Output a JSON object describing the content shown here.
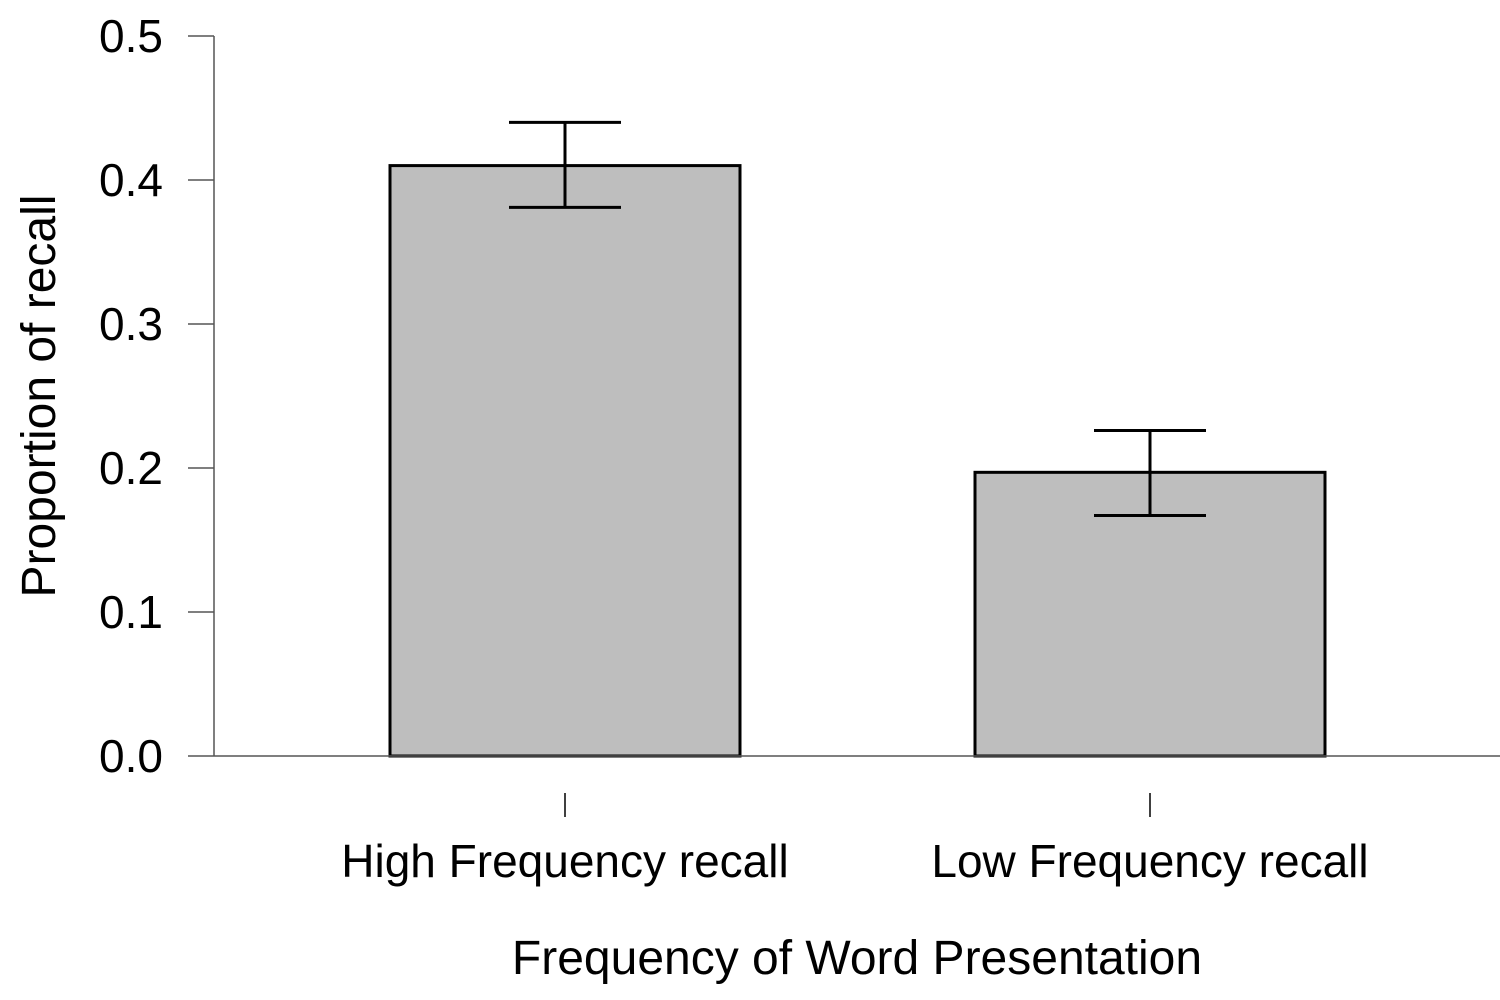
{
  "chart_data": {
    "type": "bar",
    "categories": [
      "High Frequency recall",
      "Low Frequency recall"
    ],
    "values": [
      0.41,
      0.197
    ],
    "error_low": [
      0.381,
      0.167
    ],
    "error_high": [
      0.44,
      0.226
    ],
    "title": "",
    "xlabel": "Frequency of Word Presentation",
    "ylabel": "Proportion of recall",
    "ylim": [
      0,
      0.5
    ],
    "yticks": [
      0.0,
      0.1,
      0.2,
      0.3,
      0.4,
      0.5
    ],
    "ytick_labels": [
      "0.0",
      "0.1",
      "0.2",
      "0.3",
      "0.4",
      "0.5"
    ],
    "grid": false,
    "legend": "none",
    "bar_color": "#bebebe",
    "edge_color": "#000000"
  }
}
